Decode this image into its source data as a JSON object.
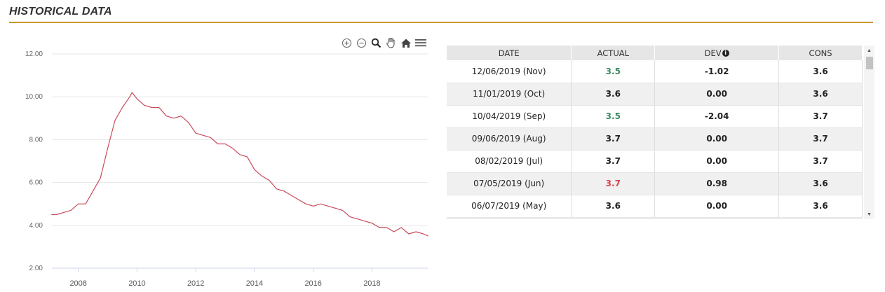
{
  "section": {
    "title": "HISTORICAL DATA"
  },
  "toolbar": {
    "icons": [
      "zoom-in-icon",
      "zoom-out-icon",
      "magnifier-icon",
      "pan-hand-icon",
      "home-icon",
      "menu-icon"
    ]
  },
  "chart_data": {
    "type": "line",
    "title": "",
    "xlabel": "",
    "ylabel": "",
    "xlim": [
      2007.1,
      2019.9
    ],
    "ylim": [
      2,
      12
    ],
    "yticks": [
      "2.00",
      "4.00",
      "6.00",
      "8.00",
      "10.00",
      "12.00"
    ],
    "xticks": [
      "2008",
      "2010",
      "2012",
      "2014",
      "2016",
      "2018"
    ],
    "grid": true,
    "legend": "none",
    "color": "#c94a5a",
    "series": [
      {
        "x": [
          2007.08,
          2007.25,
          2007.5,
          2007.75,
          2008.0,
          2008.25,
          2008.5,
          2008.75,
          2009.0,
          2009.25,
          2009.5,
          2009.75,
          2009.83,
          2010.0,
          2010.25,
          2010.5,
          2010.75,
          2011.0,
          2011.25,
          2011.5,
          2011.75,
          2012.0,
          2012.25,
          2012.5,
          2012.75,
          2013.0,
          2013.25,
          2013.5,
          2013.75,
          2014.0,
          2014.25,
          2014.5,
          2014.75,
          2015.0,
          2015.25,
          2015.5,
          2015.75,
          2016.0,
          2016.25,
          2016.5,
          2016.75,
          2017.0,
          2017.25,
          2017.5,
          2017.75,
          2018.0,
          2018.25,
          2018.5,
          2018.75,
          2019.0,
          2019.25,
          2019.5,
          2019.75,
          2019.92
        ],
        "y": [
          4.5,
          4.5,
          4.6,
          4.7,
          5.0,
          5.0,
          5.6,
          6.2,
          7.6,
          8.9,
          9.5,
          10.0,
          10.2,
          9.9,
          9.6,
          9.5,
          9.5,
          9.1,
          9.0,
          9.1,
          8.8,
          8.3,
          8.2,
          8.1,
          7.8,
          7.8,
          7.6,
          7.3,
          7.2,
          6.6,
          6.3,
          6.1,
          5.7,
          5.6,
          5.4,
          5.2,
          5.0,
          4.9,
          5.0,
          4.9,
          4.8,
          4.7,
          4.4,
          4.3,
          4.2,
          4.1,
          3.9,
          3.9,
          3.7,
          3.9,
          3.6,
          3.7,
          3.6,
          3.5
        ]
      }
    ]
  },
  "table": {
    "headers": {
      "date": "DATE",
      "actual": "ACTUAL",
      "dev": "DEV",
      "cons": "CONS"
    },
    "rows": [
      {
        "date": "12/06/2019 (Nov)",
        "actual": "3.5",
        "actual_color": "green",
        "dev": "-1.02",
        "cons": "3.6"
      },
      {
        "date": "11/01/2019 (Oct)",
        "actual": "3.6",
        "actual_color": "",
        "dev": "0.00",
        "cons": "3.6"
      },
      {
        "date": "10/04/2019 (Sep)",
        "actual": "3.5",
        "actual_color": "green",
        "dev": "-2.04",
        "cons": "3.7"
      },
      {
        "date": "09/06/2019 (Aug)",
        "actual": "3.7",
        "actual_color": "",
        "dev": "0.00",
        "cons": "3.7"
      },
      {
        "date": "08/02/2019 (Jul)",
        "actual": "3.7",
        "actual_color": "",
        "dev": "0.00",
        "cons": "3.7"
      },
      {
        "date": "07/05/2019 (Jun)",
        "actual": "3.7",
        "actual_color": "red",
        "dev": "0.98",
        "cons": "3.6"
      },
      {
        "date": "06/07/2019 (May)",
        "actual": "3.6",
        "actual_color": "",
        "dev": "0.00",
        "cons": "3.6"
      }
    ]
  }
}
